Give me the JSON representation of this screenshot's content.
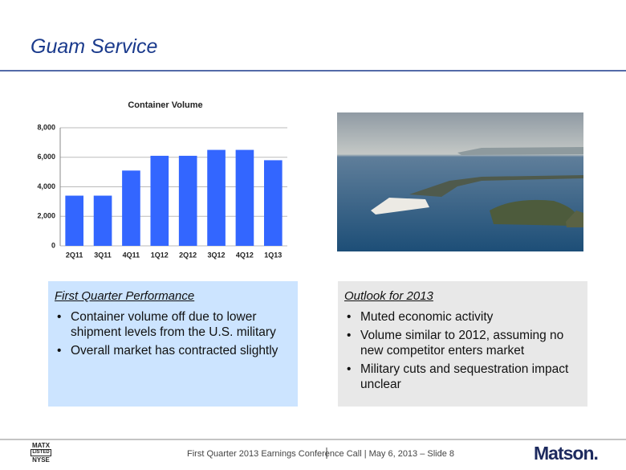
{
  "header": {
    "title": "Guam Service"
  },
  "chart_data": {
    "type": "bar",
    "title": "Container Volume",
    "categories": [
      "2Q11",
      "3Q11",
      "4Q11",
      "1Q12",
      "2Q12",
      "3Q12",
      "4Q12",
      "1Q13"
    ],
    "values": [
      3400,
      3400,
      5100,
      6100,
      6100,
      6500,
      6500,
      5800
    ],
    "color": "#3366ff",
    "ylim": [
      0,
      8000
    ],
    "yticks": [
      0,
      {
        "value": 2000,
        "label": "2,000"
      },
      {
        "value": 4000,
        "label": "4,000"
      },
      {
        "value": 6000,
        "label": "6,000"
      },
      {
        "value": 8000,
        "label": "8,000"
      }
    ],
    "grid": true
  },
  "panels": [
    {
      "heading": "First Quarter Performance",
      "bullets": [
        "Container volume off due to lower shipment levels from the U.S. military",
        "Overall market has contracted slightly"
      ]
    },
    {
      "heading": "Outlook for 2013",
      "bullets": [
        "Muted economic activity",
        "Volume similar to 2012, assuming no new competitor enters market",
        "Military cuts and sequestration impact unclear"
      ]
    }
  ],
  "footer": {
    "text": "First Quarter 2013 Earnings Conference Call | May 6, 2013 – Slide 8",
    "exchange": [
      "MATX",
      "LISTED",
      "NYSE"
    ],
    "logo": "Matson."
  }
}
